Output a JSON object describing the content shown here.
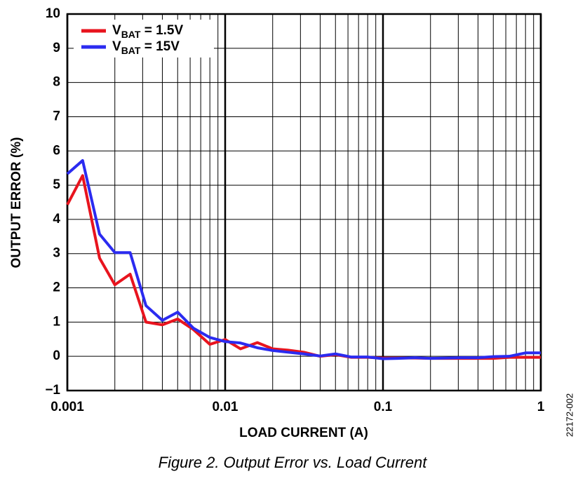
{
  "chart_data": {
    "type": "line",
    "xlabel": "LOAD CURRENT (A)",
    "ylabel": "OUTPUT ERROR (%)",
    "caption": "Figure 2. Output Error vs. Load Current",
    "figure_id": "22172-002",
    "log_x": true,
    "grid": true,
    "legend_position": "upper left",
    "xlim": [
      0.001,
      1
    ],
    "xticks": [
      0.001,
      0.01,
      0.1,
      1
    ],
    "ylim": [
      -1,
      10
    ],
    "yticks": [
      {
        "value": -1,
        "label": "−1"
      },
      0,
      1,
      2,
      3,
      4,
      5,
      6,
      7,
      8,
      9,
      10
    ],
    "x": [
      0.001,
      0.00125,
      0.0016,
      0.002,
      0.0025,
      0.00315,
      0.004,
      0.005,
      0.0063,
      0.008,
      0.01,
      0.0125,
      0.016,
      0.02,
      0.025,
      0.0315,
      0.04,
      0.05,
      0.063,
      0.08,
      0.1,
      0.125,
      0.16,
      0.2,
      0.25,
      0.315,
      0.4,
      0.5,
      0.63,
      0.8,
      1
    ],
    "series": [
      {
        "name": "VBAT = 1.5V",
        "color": "#e8141e",
        "values": [
          4.43,
          5.28,
          2.87,
          2.09,
          2.4,
          1.0,
          0.92,
          1.09,
          0.78,
          0.35,
          0.49,
          0.22,
          0.4,
          0.22,
          0.18,
          0.12,
          0.0,
          0.05,
          -0.03,
          -0.03,
          -0.05,
          -0.05,
          -0.05,
          -0.06,
          -0.06,
          -0.06,
          -0.06,
          -0.06,
          -0.03,
          -0.03,
          -0.03
        ]
      },
      {
        "name": "VBAT = 15V",
        "color": "#2b2bf0",
        "values": [
          5.33,
          5.72,
          3.57,
          3.03,
          3.03,
          1.48,
          1.05,
          1.29,
          0.82,
          0.55,
          0.43,
          0.39,
          0.25,
          0.17,
          0.12,
          0.07,
          0.01,
          0.07,
          -0.02,
          -0.02,
          -0.07,
          -0.06,
          -0.04,
          -0.06,
          -0.05,
          -0.04,
          -0.04,
          -0.01,
          0.0,
          0.1,
          0.1
        ]
      }
    ]
  }
}
